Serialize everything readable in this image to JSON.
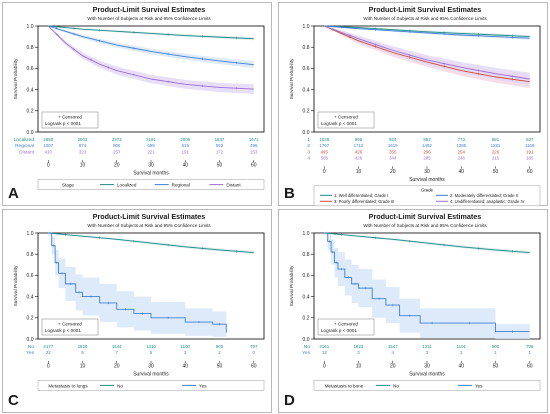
{
  "figure": {
    "panels": [
      "A",
      "B",
      "C",
      "D"
    ]
  },
  "colors": {
    "teal": "#1f8a8a",
    "orange_red": "#d04a3a",
    "purple": "#9b6fd0",
    "blue": "#3f7fd6",
    "band_teal": "#cfe9e6",
    "band_pink": "#f1d7e3",
    "band_purple": "#e3d6f5",
    "band_blue": "#d5e5f7",
    "frame": "#000000",
    "panel_border": "#b9b9b9",
    "text": "#1a1a1a",
    "grid": "#9a9a9a"
  },
  "chart_data": [
    {
      "panel": "A",
      "type": "line",
      "title": "Product-Limit Survival Estimates",
      "subtitle": "With Number of Subjects at Risk and 95% Confidence Limits",
      "xlabel": "Survival months",
      "ylabel": "Survival Probability",
      "xlim": [
        -3,
        63
      ],
      "ylim": [
        0,
        1.0
      ],
      "xticks": [
        0,
        10,
        20,
        30,
        40,
        50,
        60
      ],
      "yticks": [
        0.0,
        0.2,
        0.4,
        0.6,
        0.8,
        1.0
      ],
      "censored_label": "+ Censored",
      "logrank": "Logrank p < 0001",
      "legend_title": "Stage",
      "legend_position": "bottom",
      "series": [
        {
          "name": "Localized",
          "color": "#1f8a8a",
          "band": "#cfe9e6",
          "x": [
            0,
            5,
            10,
            20,
            30,
            40,
            50,
            60
          ],
          "y": [
            1.0,
            0.985,
            0.97,
            0.95,
            0.93,
            0.91,
            0.895,
            0.88
          ],
          "band_half": [
            0,
            0.006,
            0.008,
            0.01,
            0.011,
            0.012,
            0.013,
            0.014
          ]
        },
        {
          "name": "Regional",
          "color": "#3f7fd6",
          "band": "#d5e5f7",
          "x": [
            0,
            5,
            10,
            20,
            30,
            40,
            50,
            60
          ],
          "y": [
            1.0,
            0.95,
            0.9,
            0.82,
            0.76,
            0.71,
            0.67,
            0.635
          ],
          "band_half": [
            0,
            0.012,
            0.018,
            0.023,
            0.026,
            0.028,
            0.03,
            0.032
          ]
        },
        {
          "name": "Distant",
          "color": "#9b6fd0",
          "band": "#e3d6f5",
          "x": [
            0,
            5,
            10,
            15,
            20,
            30,
            40,
            50,
            60
          ],
          "y": [
            1.0,
            0.84,
            0.72,
            0.64,
            0.58,
            0.5,
            0.45,
            0.42,
            0.405
          ],
          "band_half": [
            0,
            0.02,
            0.03,
            0.035,
            0.038,
            0.04,
            0.042,
            0.044,
            0.046
          ]
        }
      ],
      "at_risk": [
        {
          "label": "Localized",
          "color": "#1f8a8a",
          "values": [
            "2650",
            "2503",
            "2373",
            "2181",
            "2005",
            "1837",
            "1671"
          ]
        },
        {
          "label": "Regional",
          "color": "#3f7fd6",
          "values": [
            "1007",
            "874",
            "806",
            "699",
            "619",
            "553",
            "496"
          ]
        },
        {
          "label": "Distant",
          "color": "#9b6fd0",
          "values": [
            "410",
            "323",
            "257",
            "221",
            "191",
            "172",
            "153"
          ]
        }
      ],
      "legend": [
        {
          "label": "Localized",
          "color": "#1f8a8a"
        },
        {
          "label": "Regional",
          "color": "#3f7fd6"
        },
        {
          "label": "Distant",
          "color": "#9b6fd0"
        }
      ]
    },
    {
      "panel": "B",
      "type": "line",
      "title": "Product-Limit Survival Estimates",
      "subtitle": "With Number of Subjects at Risk and 95% Confidence Limits",
      "xlabel": "Survival months",
      "ylabel": "Survival Probability",
      "xlim": [
        -3,
        63
      ],
      "ylim": [
        0,
        1.0
      ],
      "xticks": [
        0,
        10,
        20,
        30,
        40,
        50,
        60
      ],
      "yticks": [
        0.0,
        0.2,
        0.4,
        0.6,
        0.8,
        1.0
      ],
      "censored_label": "+ Censored",
      "logrank": "Logrank p < 0001",
      "legend_title": "Grade",
      "legend_position": "bottom",
      "series": [
        {
          "name": "1: Well differentiated; Grade I",
          "color": "#1f8a8a",
          "band": "#cfe9e6",
          "x": [
            0,
            10,
            20,
            30,
            40,
            50,
            60
          ],
          "y": [
            1.0,
            0.985,
            0.965,
            0.945,
            0.93,
            0.915,
            0.9
          ],
          "band_half": [
            0,
            0.008,
            0.01,
            0.012,
            0.013,
            0.014,
            0.015
          ]
        },
        {
          "name": "2: Moderately differentiated; Grade II",
          "color": "#3f7fd6",
          "band": "#d5e5f7",
          "x": [
            0,
            10,
            20,
            30,
            40,
            50,
            60
          ],
          "y": [
            1.0,
            0.975,
            0.955,
            0.935,
            0.915,
            0.9,
            0.885
          ],
          "band_half": [
            0,
            0.008,
            0.01,
            0.012,
            0.013,
            0.014,
            0.015
          ]
        },
        {
          "name": "3: Poorly differentiated; Grade III",
          "color": "#d04a3a",
          "band": "#f1d7e3",
          "x": [
            0,
            5,
            10,
            20,
            30,
            40,
            50,
            60
          ],
          "y": [
            1.0,
            0.93,
            0.86,
            0.75,
            0.66,
            0.58,
            0.52,
            0.475
          ],
          "band_half": [
            0,
            0.02,
            0.03,
            0.04,
            0.045,
            0.05,
            0.055,
            0.06
          ]
        },
        {
          "name": "4: Undifferentiated; anaplastic; Grade IV",
          "color": "#9b6fd0",
          "band": "#e3d6f5",
          "x": [
            0,
            5,
            10,
            20,
            30,
            40,
            50,
            60
          ],
          "y": [
            1.0,
            0.94,
            0.88,
            0.77,
            0.68,
            0.61,
            0.55,
            0.5
          ],
          "band_half": [
            0,
            0.02,
            0.03,
            0.04,
            0.045,
            0.05,
            0.055,
            0.06
          ]
        }
      ],
      "at_risk": [
        {
          "label": "1",
          "color": "#1f8a8a",
          "values": [
            "1028",
            "995",
            "924",
            "852",
            "773",
            "681",
            "637"
          ]
        },
        {
          "label": "2",
          "color": "#3f7fd6",
          "values": [
            "1767",
            "1712",
            "1619",
            "1492",
            "1385",
            "1281",
            "1169"
          ]
        },
        {
          "label": "3",
          "color": "#d04a3a",
          "values": [
            "495",
            "426",
            "355",
            "296",
            "254",
            "226",
            "191"
          ]
        },
        {
          "label": "4",
          "color": "#9b6fd0",
          "values": [
            "505",
            "426",
            "344",
            "285",
            "246",
            "215",
            "185"
          ]
        }
      ],
      "legend": [
        {
          "label": "1: Well differentiated; Grade I",
          "color": "#1f8a8a"
        },
        {
          "label": "2: Moderately differentiated; Grade II",
          "color": "#3f7fd6"
        },
        {
          "label": "3: Poorly differentiated; Grade III",
          "color": "#d04a3a"
        },
        {
          "label": "4: Undifferentiated; anaplastic; Grade IV",
          "color": "#9b6fd0"
        }
      ]
    },
    {
      "panel": "C",
      "type": "line",
      "title": "Product-Limit Survival Estimates",
      "subtitle": "With Number of Subjects at Risk and 95% Confidence Limits",
      "xlabel": "Survival months",
      "ylabel": "Survival Probability",
      "xlim": [
        -3,
        63
      ],
      "ylim": [
        0,
        1.0
      ],
      "xticks": [
        0,
        10,
        20,
        30,
        40,
        50,
        60
      ],
      "yticks": [
        0.0,
        0.2,
        0.4,
        0.6,
        0.8,
        1.0
      ],
      "censored_label": "+ Censored",
      "logrank": "Logrank p < 0001",
      "legend_title": "Metastasis to lungs",
      "legend_position": "bottom",
      "series": [
        {
          "name": "No",
          "color": "#1f8a8a",
          "band": "#cfe9e6",
          "x": [
            0,
            10,
            20,
            30,
            40,
            50,
            60
          ],
          "y": [
            1.0,
            0.97,
            0.94,
            0.905,
            0.87,
            0.84,
            0.815
          ],
          "band_half": [
            0,
            0.008,
            0.01,
            0.012,
            0.013,
            0.014,
            0.015
          ],
          "step": false
        },
        {
          "name": "Yes",
          "color": "#3f7fd6",
          "band": "#d5e5f7",
          "x": [
            0,
            1,
            2,
            3,
            5,
            8,
            10,
            15,
            20,
            25,
            30,
            40,
            48,
            52
          ],
          "y": [
            1.0,
            0.88,
            0.72,
            0.62,
            0.52,
            0.44,
            0.4,
            0.34,
            0.28,
            0.24,
            0.2,
            0.16,
            0.14,
            0.06
          ],
          "band_half": [
            0,
            0.08,
            0.12,
            0.14,
            0.16,
            0.17,
            0.18,
            0.18,
            0.17,
            0.16,
            0.15,
            0.13,
            0.12,
            0.06
          ],
          "step": true
        }
      ],
      "at_risk": [
        {
          "label": "No",
          "color": "#1f8a8a",
          "values": [
            "2177",
            "1820",
            "1544",
            "1310",
            "1100",
            "900",
            "707"
          ]
        },
        {
          "label": "Yes",
          "color": "#3f7fd6",
          "values": [
            "22",
            "9",
            "7",
            "5",
            "3",
            "2",
            "0"
          ]
        }
      ],
      "legend": [
        {
          "label": "No",
          "color": "#1f8a8a"
        },
        {
          "label": "Yes",
          "color": "#3f7fd6"
        }
      ]
    },
    {
      "panel": "D",
      "type": "line",
      "title": "Product-Limit Survival Estimates",
      "subtitle": "With Number of Subjects at Risk and 95% Confidence Limits",
      "xlabel": "Survival months",
      "ylabel": "Survival Probability",
      "xlim": [
        -3,
        63
      ],
      "ylim": [
        0,
        1.0
      ],
      "xticks": [
        0,
        10,
        20,
        30,
        40,
        50,
        60
      ],
      "yticks": [
        0.0,
        0.2,
        0.4,
        0.6,
        0.8,
        1.0
      ],
      "censored_label": "+ Censored",
      "logrank": "Logrank p < 0001",
      "legend_title": "Metastasis to bone",
      "legend_position": "bottom",
      "series": [
        {
          "name": "No",
          "color": "#1f8a8a",
          "band": "#cfe9e6",
          "x": [
            0,
            10,
            20,
            30,
            40,
            50,
            60
          ],
          "y": [
            1.0,
            0.97,
            0.94,
            0.905,
            0.87,
            0.84,
            0.815
          ],
          "band_half": [
            0,
            0.008,
            0.01,
            0.012,
            0.013,
            0.014,
            0.015
          ],
          "step": false
        },
        {
          "name": "Yes",
          "color": "#3f7fd6",
          "band": "#d5e5f7",
          "x": [
            0,
            1,
            2,
            3,
            4,
            6,
            8,
            10,
            14,
            18,
            22,
            28,
            35,
            50,
            60
          ],
          "y": [
            1.0,
            0.92,
            0.82,
            0.72,
            0.66,
            0.58,
            0.52,
            0.48,
            0.38,
            0.32,
            0.22,
            0.15,
            0.15,
            0.07,
            0.07
          ],
          "band_half": [
            0,
            0.08,
            0.12,
            0.14,
            0.16,
            0.17,
            0.18,
            0.18,
            0.18,
            0.17,
            0.16,
            0.14,
            0.14,
            0.07,
            0.07
          ],
          "step": true
        }
      ],
      "at_risk": [
        {
          "label": "No",
          "color": "#1f8a8a",
          "values": [
            "2161",
            "1823",
            "1547",
            "1311",
            "1101",
            "900",
            "706"
          ]
        },
        {
          "label": "Yes",
          "color": "#3f7fd6",
          "values": [
            "13",
            "3",
            "4",
            "3",
            "1",
            "1",
            "1"
          ]
        }
      ],
      "legend": [
        {
          "label": "No",
          "color": "#1f8a8a"
        },
        {
          "label": "Yes",
          "color": "#3f7fd6"
        }
      ]
    }
  ]
}
